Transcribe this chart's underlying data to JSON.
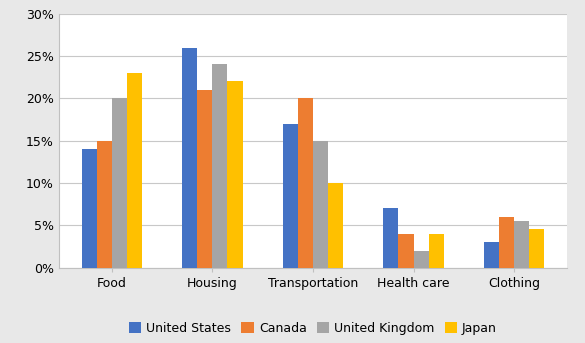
{
  "categories": [
    "Food",
    "Housing",
    "Transportation",
    "Health care",
    "Clothing"
  ],
  "series": [
    {
      "name": "United States",
      "values": [
        0.14,
        0.26,
        0.17,
        0.07,
        0.03
      ],
      "color": "#4472C4"
    },
    {
      "name": "Canada",
      "values": [
        0.15,
        0.21,
        0.2,
        0.04,
        0.06
      ],
      "color": "#ED7D31"
    },
    {
      "name": "United Kingdom",
      "values": [
        0.2,
        0.24,
        0.15,
        0.02,
        0.055
      ],
      "color": "#A5A5A5"
    },
    {
      "name": "Japan",
      "values": [
        0.23,
        0.22,
        0.1,
        0.04,
        0.046
      ],
      "color": "#FFC000"
    }
  ],
  "ylim": [
    0,
    0.3
  ],
  "yticks": [
    0.0,
    0.05,
    0.1,
    0.15,
    0.2,
    0.25,
    0.3
  ],
  "ytick_labels": [
    "0%",
    "5%",
    "10%",
    "15%",
    "20%",
    "25%",
    "30%"
  ],
  "legend_ncol": 4,
  "bar_width": 0.15,
  "figsize": [
    5.85,
    3.43
  ],
  "dpi": 100,
  "background_color": "#ffffff",
  "outer_background": "#e8e8e8",
  "font_size": 9,
  "grid_color": "#c8c8c8",
  "spine_color": "#c0c0c0"
}
